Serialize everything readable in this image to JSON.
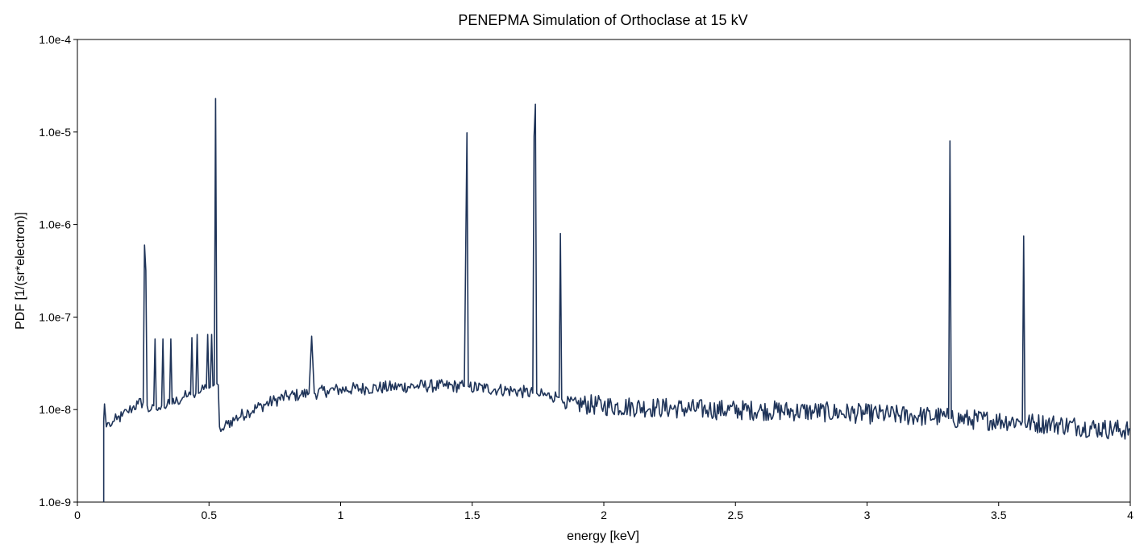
{
  "chart_data": {
    "type": "line",
    "title": "PENEPMA Simulation of Orthoclase at 15 kV",
    "xlabel": "energy [keV]",
    "ylabel": "PDF [1/(sr*electron)]",
    "xlim": [
      0,
      4
    ],
    "ylim": [
      1e-09,
      0.0001
    ],
    "yscale": "log",
    "grid": false,
    "legend": "none",
    "x_ticks": [
      {
        "value": 0,
        "label": "0"
      },
      {
        "value": 0.5,
        "label": "0.5"
      },
      {
        "value": 1,
        "label": "1"
      },
      {
        "value": 1.5,
        "label": "1.5"
      },
      {
        "value": 2,
        "label": "2"
      },
      {
        "value": 2.5,
        "label": "2.5"
      },
      {
        "value": 3,
        "label": "3"
      },
      {
        "value": 3.5,
        "label": "3.5"
      },
      {
        "value": 4,
        "label": "4"
      }
    ],
    "y_ticks": [
      {
        "value": 1e-09,
        "label": "1.0e-9"
      },
      {
        "value": 1e-08,
        "label": "1.0e-8"
      },
      {
        "value": 1e-07,
        "label": "1.0e-7"
      },
      {
        "value": 1e-06,
        "label": "1.0e-6"
      },
      {
        "value": 1e-05,
        "label": "1.0e-5"
      },
      {
        "value": 0.0001,
        "label": "1.0e-4"
      }
    ],
    "series": [
      {
        "color": "#1f3459",
        "x": [
          0.1,
          0.1,
          0.103,
          0.11,
          0.12,
          0.13,
          0.14,
          0.15,
          0.17,
          0.19,
          0.21,
          0.23,
          0.25,
          0.255,
          0.26,
          0.265,
          0.27,
          0.28,
          0.29,
          0.295,
          0.3,
          0.31,
          0.32,
          0.325,
          0.33,
          0.34,
          0.35,
          0.355,
          0.36,
          0.38,
          0.4,
          0.42,
          0.43,
          0.435,
          0.44,
          0.45,
          0.455,
          0.46,
          0.47,
          0.48,
          0.49,
          0.495,
          0.5,
          0.505,
          0.51,
          0.515,
          0.52,
          0.525,
          0.53,
          0.535,
          0.54,
          0.545,
          0.55,
          0.57,
          0.6,
          0.65,
          0.7,
          0.75,
          0.8,
          0.85,
          0.88,
          0.89,
          0.9,
          0.95,
          1.0,
          1.1,
          1.2,
          1.3,
          1.4,
          1.47,
          1.48,
          1.485,
          1.49,
          1.55,
          1.6,
          1.65,
          1.7,
          1.73,
          1.735,
          1.74,
          1.745,
          1.75,
          1.8,
          1.82,
          1.83,
          1.835,
          1.84,
          1.85,
          1.9,
          2.0,
          2.2,
          2.4,
          2.6,
          2.8,
          3.0,
          3.2,
          3.3,
          3.31,
          3.315,
          3.32,
          3.4,
          3.5,
          3.58,
          3.59,
          3.595,
          3.6,
          3.7,
          3.8,
          3.9,
          4.0
        ],
        "y": [
          1e-09,
          7.5e-09,
          1.15e-08,
          6.5e-09,
          7.2e-09,
          6.8e-09,
          7.5e-09,
          7.8e-09,
          8.5e-09,
          9.5e-09,
          1.05e-08,
          1.15e-08,
          1.2e-08,
          6e-07,
          3.2e-07,
          1.1e-08,
          9.5e-09,
          1e-08,
          1.1e-08,
          5.8e-08,
          1e-08,
          1.05e-08,
          1.1e-08,
          5.8e-08,
          1.05e-08,
          1.1e-08,
          1.15e-08,
          5.8e-08,
          1.15e-08,
          1.25e-08,
          1.35e-08,
          1.4e-08,
          1.45e-08,
          6e-08,
          1.45e-08,
          1.5e-08,
          6.5e-08,
          1.5e-08,
          1.6e-08,
          1.65e-08,
          1.7e-08,
          6.5e-08,
          1.7e-08,
          1.75e-08,
          6.5e-08,
          1.8e-08,
          1.85e-08,
          2.3e-05,
          1.9e-08,
          1.85e-08,
          6.5e-09,
          5.8e-09,
          6.2e-09,
          7e-09,
          8e-09,
          9.5e-09,
          1.1e-08,
          1.25e-08,
          1.4e-08,
          1.45e-08,
          1.5e-08,
          6.2e-08,
          1.5e-08,
          1.6e-08,
          1.65e-08,
          1.7e-08,
          1.75e-08,
          1.8e-08,
          1.8e-08,
          1.78e-08,
          9.8e-06,
          1.78e-08,
          1.75e-08,
          1.7e-08,
          1.65e-08,
          1.6e-08,
          1.55e-08,
          1.5e-08,
          9e-06,
          2e-05,
          1.5e-08,
          1.45e-08,
          1.4e-08,
          1.38e-08,
          1.35e-08,
          8e-07,
          1.3e-08,
          1.2e-08,
          1.15e-08,
          1.1e-08,
          1.05e-08,
          1e-08,
          9.8e-09,
          9.5e-09,
          9e-09,
          8.5e-09,
          8.3e-09,
          8e-09,
          8e-06,
          8e-09,
          7.8e-09,
          7.6e-09,
          7.5e-09,
          7.4e-09,
          7.5e-07,
          7.2e-09,
          7e-09,
          6.6e-09,
          6.2e-09,
          6e-09
        ]
      }
    ]
  }
}
